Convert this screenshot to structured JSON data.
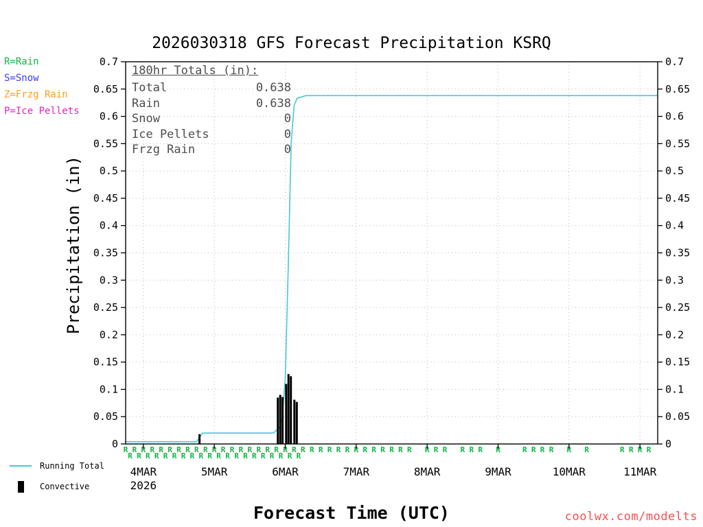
{
  "title": "2026030318 GFS Forecast Precipitation KSRQ",
  "axes": {
    "y_label": "Precipitation (in)",
    "x_label": "Forecast Time (UTC)"
  },
  "type_legend": [
    {
      "label": "R=Rain",
      "color": "#00bb44"
    },
    {
      "label": "S=Snow",
      "color": "#3a3aff"
    },
    {
      "label": "Z=Frzg Rain",
      "color": "#ff9c1e"
    },
    {
      "label": "P=Ice Pellets",
      "color": "#e622bb"
    }
  ],
  "totals_box": {
    "header": "180hr Totals (in):",
    "rows": [
      {
        "label": "Total",
        "value": "0.638"
      },
      {
        "label": "Rain",
        "value": "0.638"
      },
      {
        "label": "Snow",
        "value": "0"
      },
      {
        "label": "Ice Pellets",
        "value": "0"
      },
      {
        "label": "Frzg Rain",
        "value": "0"
      }
    ]
  },
  "bottom_legend": [
    {
      "label": "Running Total",
      "swatch": "line",
      "color": "#44c8d8"
    },
    {
      "label": "Convective",
      "swatch": "bar",
      "color": "#000000"
    }
  ],
  "credit": "coolwx.com/modelts",
  "credit_color": "#fb4f4f",
  "chart_data": {
    "type": "line",
    "title": "2026030318 GFS Forecast Precipitation KSRQ",
    "xlabel": "Forecast Time (UTC)",
    "ylabel": "Precipitation (in)",
    "x_range_hours": [
      0,
      180
    ],
    "y_range": [
      0,
      0.7
    ],
    "grid": true,
    "x_ticks": [
      {
        "hour": 6,
        "label": "4MAR",
        "sub": "2026"
      },
      {
        "hour": 30,
        "label": "5MAR"
      },
      {
        "hour": 54,
        "label": "6MAR"
      },
      {
        "hour": 78,
        "label": "7MAR"
      },
      {
        "hour": 102,
        "label": "8MAR"
      },
      {
        "hour": 126,
        "label": "9MAR"
      },
      {
        "hour": 150,
        "label": "10MAR"
      },
      {
        "hour": 174,
        "label": "11MAR"
      }
    ],
    "y_ticks": [
      {
        "v": 0,
        "label": "0"
      },
      {
        "v": 0.05,
        "label": "0.05"
      },
      {
        "v": 0.1,
        "label": "0.1"
      },
      {
        "v": 0.15,
        "label": "0.15"
      },
      {
        "v": 0.2,
        "label": "0.2"
      },
      {
        "v": 0.25,
        "label": "0.25"
      },
      {
        "v": 0.3,
        "label": "0.3"
      },
      {
        "v": 0.35,
        "label": "0.35"
      },
      {
        "v": 0.4,
        "label": "0.4"
      },
      {
        "v": 0.45,
        "label": "0.45"
      },
      {
        "v": 0.5,
        "label": "0.5"
      },
      {
        "v": 0.55,
        "label": "0.55"
      },
      {
        "v": 0.6,
        "label": "0.6"
      },
      {
        "v": 0.65,
        "label": "0.65"
      },
      {
        "v": 0.7,
        "label": "0.7"
      }
    ],
    "series": [
      {
        "name": "Running Total",
        "kind": "line",
        "color": "#44c8d8",
        "points": [
          [
            0,
            0.004
          ],
          [
            24,
            0.004
          ],
          [
            25,
            0.012
          ],
          [
            26,
            0.02
          ],
          [
            50,
            0.02
          ],
          [
            52,
            0.03
          ],
          [
            53,
            0.05
          ],
          [
            54,
            0.12
          ],
          [
            55,
            0.32
          ],
          [
            56,
            0.55
          ],
          [
            57,
            0.62
          ],
          [
            58,
            0.633
          ],
          [
            61,
            0.638
          ],
          [
            180,
            0.638
          ]
        ]
      },
      {
        "name": "Convective",
        "kind": "bar",
        "color": "#000000",
        "points": [
          [
            25,
            0.018
          ],
          [
            51.5,
            0.085
          ],
          [
            52.3,
            0.09
          ],
          [
            53.1,
            0.086
          ],
          [
            54.3,
            0.11
          ],
          [
            55.1,
            0.128
          ],
          [
            55.9,
            0.124
          ],
          [
            57.1,
            0.081
          ],
          [
            57.9,
            0.077
          ]
        ]
      }
    ],
    "precip_type_markers": {
      "symbol": "R",
      "meaning": "Rain",
      "color": "#00bb44",
      "row1_hours": [
        0,
        3,
        6,
        9,
        12,
        15,
        18,
        21,
        24,
        27,
        30,
        33,
        36,
        39,
        42,
        45,
        48,
        51,
        54,
        57,
        60,
        63,
        66,
        69,
        72,
        75,
        78,
        81,
        84,
        87,
        90,
        93,
        96,
        102,
        105,
        108,
        114,
        117,
        120,
        126,
        135,
        138,
        141,
        144,
        150,
        156,
        168,
        171,
        174,
        177
      ],
      "row2_hours": [
        1.5,
        4.5,
        7.5,
        10.5,
        13.5,
        16.5,
        19.5,
        22.5,
        25.5,
        28.5,
        31.5,
        34.5,
        37.5,
        40.5,
        43.5,
        46.5,
        49.5,
        52.5,
        55.5,
        58.5
      ]
    }
  }
}
